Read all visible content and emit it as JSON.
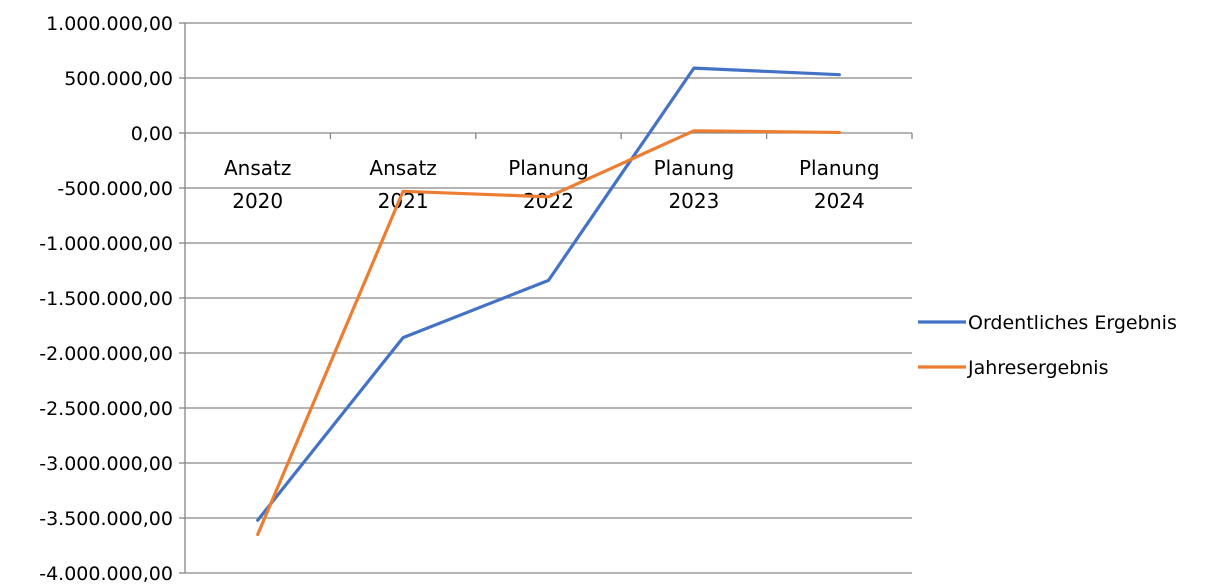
{
  "chart_data": {
    "type": "line",
    "categories": [
      [
        "Ansatz",
        "2020"
      ],
      [
        "Ansatz",
        "2021"
      ],
      [
        "Planung",
        "2022"
      ],
      [
        "Planung",
        "2023"
      ],
      [
        "Planung",
        "2024"
      ]
    ],
    "series": [
      {
        "name": "Ordentliches Ergebnis",
        "color": "#4472C4",
        "values": [
          -3520000,
          -1860000,
          -1340000,
          590000,
          530000
        ]
      },
      {
        "name": "Jahresergebnis",
        "color": "#ED7D31",
        "values": [
          -3650000,
          -530000,
          -580000,
          20000,
          5000
        ]
      }
    ],
    "yticks": [
      {
        "value": 1000000,
        "label": "1.000.000,00"
      },
      {
        "value": 500000,
        "label": "500.000,00"
      },
      {
        "value": 0,
        "label": "0,00"
      },
      {
        "value": -500000,
        "label": "-500.000,00"
      },
      {
        "value": -1000000,
        "label": "-1.000.000,00"
      },
      {
        "value": -1500000,
        "label": "-1.500.000,00"
      },
      {
        "value": -2000000,
        "label": "-2.000.000,00"
      },
      {
        "value": -2500000,
        "label": "-2.500.000,00"
      },
      {
        "value": -3000000,
        "label": "-3.000.000,00"
      },
      {
        "value": -3500000,
        "label": "-3.500.000,00"
      },
      {
        "value": -4000000,
        "label": "-4.000.000,00"
      }
    ],
    "ylim": [
      -4000000,
      1000000
    ],
    "grid": true,
    "legend_position": "right"
  }
}
